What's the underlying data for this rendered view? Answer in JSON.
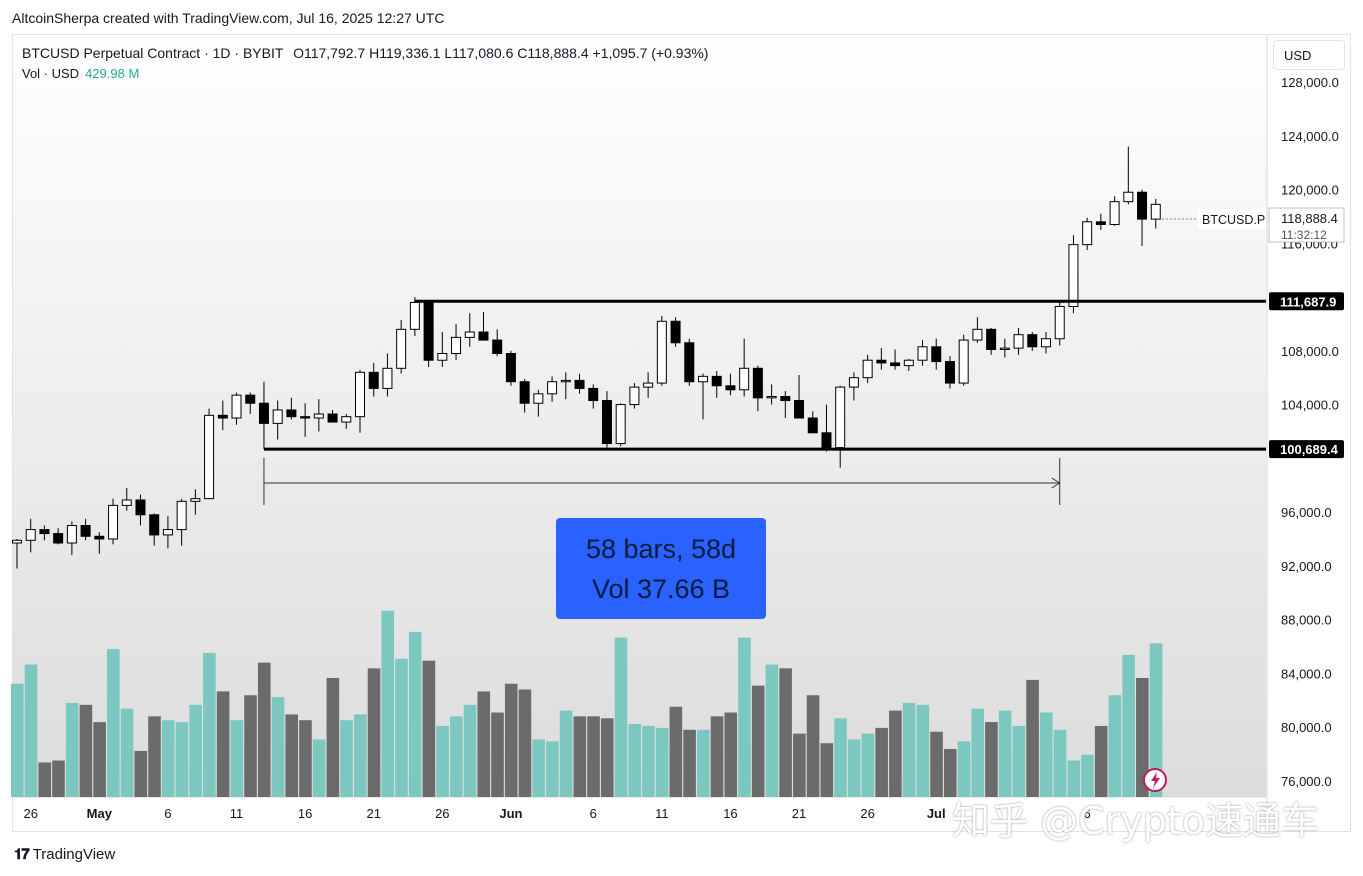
{
  "header": {
    "created_line": "AltcoinSherpa created with TradingView.com, Jul 16, 2025 12:27 UTC"
  },
  "legend": {
    "symbol": "BTCUSD Perpetual Contract · 1D · BYBIT",
    "ohlc": "O117,792.7  H119,336.1  L117,080.6  C118,888.4  +1,095.7 (+0.93%)",
    "vol_label": "Vol · USD",
    "vol_value": "429.98 M"
  },
  "currency_button": "USD",
  "price_tag": {
    "symbol": "BTCUSD.P",
    "price": "118,888.4",
    "countdown": "11:32:12"
  },
  "level_labels": {
    "upper": "111,687.9",
    "lower": "100,689.4"
  },
  "measure": {
    "line1": "58 bars, 58d",
    "line2": "Vol 37.66 B"
  },
  "footer": {
    "brand": "TradingView"
  },
  "watermark": "知乎 @Crypto速通车",
  "colors": {
    "up_body": "#ffffff",
    "down_body": "#000000",
    "vol_up": "#7cc8c0",
    "vol_down": "#6b6b6b",
    "measure_bg": "#2962ff",
    "vol_value": "#26a69a"
  },
  "chart_data": {
    "type": "candlestick",
    "y_axis_labels": [
      "128,000.0",
      "124,000.0",
      "120,000.0",
      "116,000.0",
      "108,000.0",
      "104,000.0",
      "96,000.0",
      "92,000.0",
      "88,000.0",
      "84,000.0",
      "80,000.0",
      "76,000.0"
    ],
    "y_axis_values": [
      128000,
      124000,
      120000,
      116000,
      108000,
      104000,
      96000,
      92000,
      88000,
      84000,
      80000,
      76000
    ],
    "ylim": [
      74800,
      131500
    ],
    "x_axis_labels": [
      "26",
      "May",
      "6",
      "11",
      "16",
      "21",
      "26",
      "Jun",
      "6",
      "11",
      "16",
      "21",
      "26",
      "Jul",
      "6"
    ],
    "x_axis_label_bars": [
      1,
      6,
      11,
      16,
      21,
      26,
      31,
      36,
      42,
      47,
      52,
      57,
      62,
      67,
      78
    ],
    "horizontal_levels": [
      111687.9,
      100689.4
    ],
    "measure_range": {
      "start_bar": 18,
      "end_bar": 76,
      "bars": 58
    },
    "candles": [
      {
        "o": 93700,
        "h": 94000,
        "l": 91800,
        "c": 93900
      },
      {
        "o": 93900,
        "h": 95500,
        "l": 93000,
        "c": 94700
      },
      {
        "o": 94700,
        "h": 95000,
        "l": 93900,
        "c": 94400
      },
      {
        "o": 94400,
        "h": 94800,
        "l": 93600,
        "c": 93700
      },
      {
        "o": 93700,
        "h": 95300,
        "l": 92800,
        "c": 95000
      },
      {
        "o": 95000,
        "h": 95500,
        "l": 93900,
        "c": 94200
      },
      {
        "o": 94200,
        "h": 94500,
        "l": 92900,
        "c": 94000
      },
      {
        "o": 94000,
        "h": 97000,
        "l": 93600,
        "c": 96500
      },
      {
        "o": 96500,
        "h": 97800,
        "l": 96100,
        "c": 96900
      },
      {
        "o": 96900,
        "h": 97300,
        "l": 95000,
        "c": 95800
      },
      {
        "o": 95800,
        "h": 95900,
        "l": 93500,
        "c": 94300
      },
      {
        "o": 94300,
        "h": 95700,
        "l": 93300,
        "c": 94700
      },
      {
        "o": 94700,
        "h": 97000,
        "l": 93500,
        "c": 96800
      },
      {
        "o": 96800,
        "h": 97700,
        "l": 95800,
        "c": 97000
      },
      {
        "o": 97000,
        "h": 103700,
        "l": 97000,
        "c": 103200
      },
      {
        "o": 103200,
        "h": 104300,
        "l": 102100,
        "c": 103000
      },
      {
        "o": 103000,
        "h": 104900,
        "l": 102500,
        "c": 104700
      },
      {
        "o": 104700,
        "h": 104900,
        "l": 103300,
        "c": 104100
      },
      {
        "o": 104100,
        "h": 105700,
        "l": 100700,
        "c": 102600
      },
      {
        "o": 102600,
        "h": 104300,
        "l": 101400,
        "c": 103600
      },
      {
        "o": 103600,
        "h": 104500,
        "l": 102900,
        "c": 103100
      },
      {
        "o": 103100,
        "h": 104100,
        "l": 101600,
        "c": 103000
      },
      {
        "o": 103000,
        "h": 104400,
        "l": 102000,
        "c": 103300
      },
      {
        "o": 103300,
        "h": 103600,
        "l": 102700,
        "c": 102700
      },
      {
        "o": 102700,
        "h": 103300,
        "l": 102200,
        "c": 103100
      },
      {
        "o": 103100,
        "h": 106600,
        "l": 101900,
        "c": 106400
      },
      {
        "o": 106400,
        "h": 107100,
        "l": 104600,
        "c": 105200
      },
      {
        "o": 105200,
        "h": 107800,
        "l": 104600,
        "c": 106700
      },
      {
        "o": 106700,
        "h": 110300,
        "l": 106300,
        "c": 109600
      },
      {
        "o": 109600,
        "h": 112000,
        "l": 109100,
        "c": 111600
      },
      {
        "o": 111600,
        "h": 111600,
        "l": 106800,
        "c": 107300
      },
      {
        "o": 107300,
        "h": 109400,
        "l": 106800,
        "c": 107800
      },
      {
        "o": 107800,
        "h": 110000,
        "l": 107300,
        "c": 109000
      },
      {
        "o": 109000,
        "h": 110800,
        "l": 108300,
        "c": 109400
      },
      {
        "o": 109400,
        "h": 110900,
        "l": 108800,
        "c": 108800
      },
      {
        "o": 108800,
        "h": 109600,
        "l": 107600,
        "c": 107800
      },
      {
        "o": 107800,
        "h": 108000,
        "l": 105400,
        "c": 105700
      },
      {
        "o": 105700,
        "h": 105900,
        "l": 103400,
        "c": 104100
      },
      {
        "o": 104100,
        "h": 105100,
        "l": 103100,
        "c": 104800
      },
      {
        "o": 104800,
        "h": 106100,
        "l": 104200,
        "c": 105700
      },
      {
        "o": 105700,
        "h": 106400,
        "l": 104400,
        "c": 105800
      },
      {
        "o": 105800,
        "h": 106300,
        "l": 104800,
        "c": 105200
      },
      {
        "o": 105200,
        "h": 105500,
        "l": 103700,
        "c": 104300
      },
      {
        "o": 104300,
        "h": 105000,
        "l": 100800,
        "c": 101100
      },
      {
        "o": 101100,
        "h": 104100,
        "l": 100900,
        "c": 104000
      },
      {
        "o": 104000,
        "h": 105600,
        "l": 103700,
        "c": 105300
      },
      {
        "o": 105300,
        "h": 106400,
        "l": 104500,
        "c": 105600
      },
      {
        "o": 105600,
        "h": 110600,
        "l": 105400,
        "c": 110200
      },
      {
        "o": 110200,
        "h": 110500,
        "l": 108300,
        "c": 108600
      },
      {
        "o": 108600,
        "h": 108900,
        "l": 105400,
        "c": 105700
      },
      {
        "o": 105700,
        "h": 106300,
        "l": 102900,
        "c": 106100
      },
      {
        "o": 106100,
        "h": 106500,
        "l": 104500,
        "c": 105400
      },
      {
        "o": 105400,
        "h": 106300,
        "l": 104700,
        "c": 105100
      },
      {
        "o": 105100,
        "h": 108900,
        "l": 104600,
        "c": 106700
      },
      {
        "o": 106700,
        "h": 106900,
        "l": 103500,
        "c": 104500
      },
      {
        "o": 104500,
        "h": 105500,
        "l": 104000,
        "c": 104600
      },
      {
        "o": 104600,
        "h": 105000,
        "l": 103000,
        "c": 104300
      },
      {
        "o": 104300,
        "h": 106200,
        "l": 103000,
        "c": 103000
      },
      {
        "o": 103000,
        "h": 103500,
        "l": 101900,
        "c": 101900
      },
      {
        "o": 101900,
        "h": 104000,
        "l": 100500,
        "c": 100800
      },
      {
        "o": 100800,
        "h": 105400,
        "l": 99300,
        "c": 105300
      },
      {
        "o": 105300,
        "h": 106400,
        "l": 104300,
        "c": 106000
      },
      {
        "o": 106000,
        "h": 107700,
        "l": 105600,
        "c": 107300
      },
      {
        "o": 107300,
        "h": 108200,
        "l": 106600,
        "c": 107100
      },
      {
        "o": 107100,
        "h": 108100,
        "l": 106600,
        "c": 106900
      },
      {
        "o": 106900,
        "h": 107400,
        "l": 106500,
        "c": 107300
      },
      {
        "o": 107300,
        "h": 108800,
        "l": 106900,
        "c": 108300
      },
      {
        "o": 108300,
        "h": 108900,
        "l": 106600,
        "c": 107200
      },
      {
        "o": 107200,
        "h": 107600,
        "l": 105200,
        "c": 105600
      },
      {
        "o": 105600,
        "h": 109200,
        "l": 105400,
        "c": 108800
      },
      {
        "o": 108800,
        "h": 110500,
        "l": 108600,
        "c": 109600
      },
      {
        "o": 109600,
        "h": 109700,
        "l": 107700,
        "c": 108100
      },
      {
        "o": 108100,
        "h": 108900,
        "l": 107500,
        "c": 108200
      },
      {
        "o": 108200,
        "h": 109700,
        "l": 107700,
        "c": 109200
      },
      {
        "o": 109200,
        "h": 109400,
        "l": 108000,
        "c": 108300
      },
      {
        "o": 108300,
        "h": 109400,
        "l": 107800,
        "c": 108900
      },
      {
        "o": 108900,
        "h": 111700,
        "l": 108400,
        "c": 111300
      },
      {
        "o": 111300,
        "h": 116600,
        "l": 110800,
        "c": 115900
      },
      {
        "o": 115900,
        "h": 117900,
        "l": 115500,
        "c": 117600
      },
      {
        "o": 117600,
        "h": 118200,
        "l": 117000,
        "c": 117400
      },
      {
        "o": 117400,
        "h": 119500,
        "l": 117300,
        "c": 119100
      },
      {
        "o": 119100,
        "h": 123200,
        "l": 118900,
        "c": 119800
      },
      {
        "o": 119800,
        "h": 120000,
        "l": 115800,
        "c": 117800
      },
      {
        "o": 117800,
        "h": 119300,
        "l": 117100,
        "c": 118900
      }
    ],
    "volume_note": "relative heights (0-1 of panel) per bar",
    "volume": [
      0.59,
      0.69,
      0.18,
      0.19,
      0.49,
      0.48,
      0.39,
      0.77,
      0.46,
      0.24,
      0.42,
      0.4,
      0.39,
      0.48,
      0.75,
      0.55,
      0.4,
      0.53,
      0.7,
      0.52,
      0.43,
      0.4,
      0.3,
      0.62,
      0.4,
      0.43,
      0.67,
      0.97,
      0.72,
      0.86,
      0.71,
      0.37,
      0.42,
      0.48,
      0.55,
      0.44,
      0.59,
      0.56,
      0.3,
      0.29,
      0.45,
      0.42,
      0.42,
      0.41,
      0.83,
      0.38,
      0.37,
      0.36,
      0.47,
      0.35,
      0.35,
      0.42,
      0.44,
      0.83,
      0.58,
      0.69,
      0.67,
      0.33,
      0.53,
      0.28,
      0.41,
      0.3,
      0.33,
      0.36,
      0.45,
      0.49,
      0.48,
      0.34,
      0.25,
      0.29,
      0.46,
      0.39,
      0.45,
      0.37,
      0.61,
      0.44,
      0.35,
      0.19,
      0.22,
      0.37,
      0.53,
      0.74,
      0.62,
      0.8
    ]
  }
}
